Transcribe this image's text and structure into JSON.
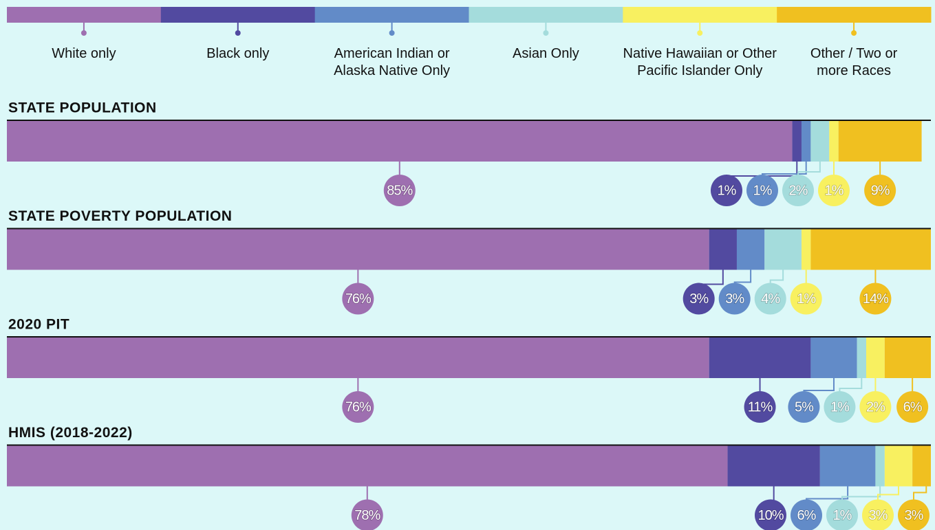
{
  "chart_data": {
    "type": "bar",
    "orientation": "horizontal",
    "stacked": true,
    "categories": [
      "STATE POPULATION",
      "STATE POVERTY POPULATION",
      "2020 PIT",
      "HMIS (2018-2022)"
    ],
    "xlim": [
      0,
      100
    ],
    "series": [
      {
        "name": "White only",
        "color": "#9e6fb0",
        "values": [
          85,
          76,
          76,
          78
        ],
        "value_labels": [
          "85%",
          "76%",
          "76%",
          "78%"
        ]
      },
      {
        "name": "Black only",
        "color": "#524aa0",
        "values": [
          1,
          3,
          11,
          10
        ],
        "value_labels": [
          "1%",
          "3%",
          "11%",
          "10%"
        ]
      },
      {
        "name": "American Indian or Alaska Native Only",
        "color": "#628bc8",
        "values": [
          1,
          3,
          5,
          6
        ],
        "value_labels": [
          "1%",
          "3%",
          "5%",
          "6%"
        ]
      },
      {
        "name": "Asian Only",
        "color": "#a4dcdc",
        "values": [
          2,
          4,
          1,
          1
        ],
        "value_labels": [
          "2%",
          "4%",
          "1%",
          "1%"
        ]
      },
      {
        "name": "Native Hawaiian or Other Pacific Islander Only",
        "color": "#f8f060",
        "values": [
          1,
          1,
          2,
          3
        ],
        "value_labels": [
          "1%",
          "1%",
          "2%",
          "3%"
        ]
      },
      {
        "name": "Other / Two or more Races",
        "color": "#f0c020",
        "values": [
          9,
          14,
          6,
          3
        ],
        "value_labels": [
          "9%",
          "14%",
          "6%",
          "3%"
        ]
      }
    ]
  }
}
